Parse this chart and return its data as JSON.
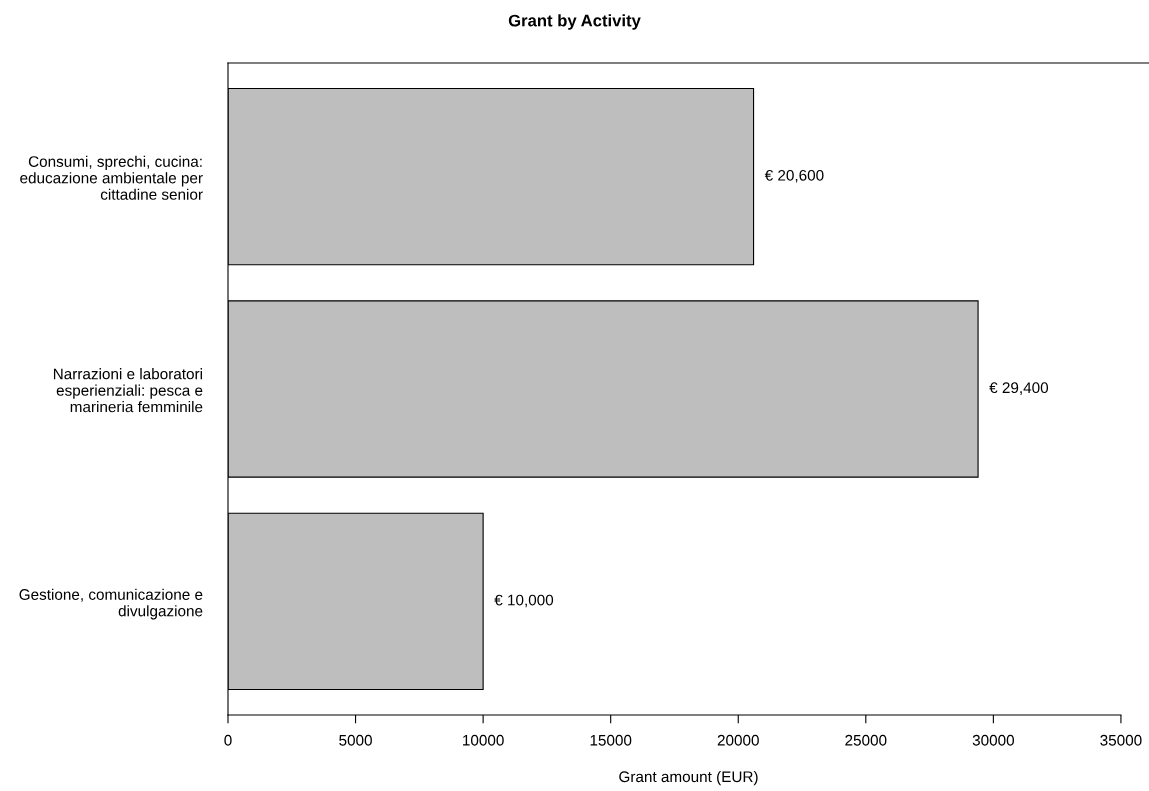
{
  "chart_data": {
    "type": "bar",
    "orientation": "horizontal",
    "title": "Grant by Activity",
    "xlabel": "Grant amount (EUR)",
    "categories": [
      "Consumi, sprechi, cucina:\neducazione ambientale per\ncittadine senior",
      "Narrazioni e laboratori\nesperienziali: pesca e\nmarineria femminile",
      "Gestione, comunicazione e\ndivulgazione"
    ],
    "values": [
      20600,
      29400,
      10000
    ],
    "color": "#bebebe",
    "value_labels": [
      "€ 20,600",
      "€ 29,400",
      "€ 10,000"
    ],
    "xlim": [
      0,
      36100
    ],
    "xticks": [
      0,
      5000,
      10000,
      15000,
      20000,
      25000,
      30000,
      35000
    ],
    "grid": false
  }
}
